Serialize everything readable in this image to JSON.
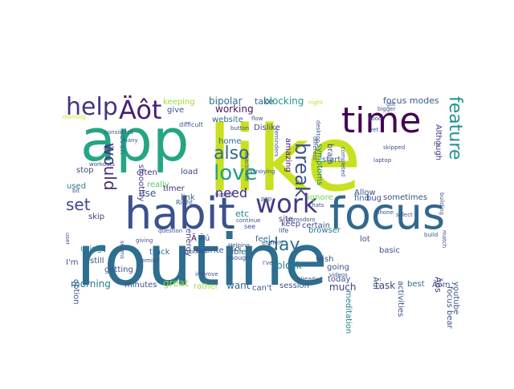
{
  "word_cloud": {
    "words": [
      {
        "text": "like",
        "color": "#c8e020"
      },
      {
        "text": "routine",
        "color": "#2e6e8e"
      },
      {
        "text": "app",
        "color": "#25a584"
      },
      {
        "text": "habit",
        "color": "#3b528b"
      },
      {
        "text": "focus",
        "color": "#31688e"
      },
      {
        "text": "time",
        "color": "#440154"
      },
      {
        "text": "work",
        "color": "#443983"
      },
      {
        "text": "help",
        "color": "#46327e"
      },
      {
        "text": "Äôt",
        "color": "#481f70"
      },
      {
        "text": "love",
        "color": "#1f9e89"
      },
      {
        "text": "feature",
        "color": "#21918c"
      },
      {
        "text": "break",
        "color": "#3b528b"
      },
      {
        "text": "also",
        "color": "#31688e"
      },
      {
        "text": "day",
        "color": "#2d708e"
      },
      {
        "text": "would",
        "color": "#472d7b"
      },
      {
        "text": "set",
        "color": "#3e4989"
      },
      {
        "text": "need",
        "color": "#482878"
      },
      {
        "text": "morning",
        "color": "#2a788e"
      },
      {
        "text": "Äôs",
        "color": "#453781"
      },
      {
        "text": "task",
        "color": "#414487"
      },
      {
        "text": "much",
        "color": "#433e85"
      },
      {
        "text": "bipolar",
        "color": "#2c728e"
      },
      {
        "text": "blocking",
        "color": "#1f968b"
      },
      {
        "text": "take",
        "color": "#31688e"
      },
      {
        "text": "focus modes",
        "color": "#38598c"
      },
      {
        "text": "working",
        "color": "#471164"
      },
      {
        "text": "keeping",
        "color": "#a2da37"
      },
      {
        "text": "give",
        "color": "#3b528b"
      },
      {
        "text": "website",
        "color": "#31688e"
      },
      {
        "text": "Dislike",
        "color": "#404688"
      },
      {
        "text": "amazing",
        "color": "#482475"
      },
      {
        "text": "start",
        "color": "#31688e"
      },
      {
        "text": "bug",
        "color": "#3b528b"
      },
      {
        "text": "Although",
        "color": "#433e85"
      },
      {
        "text": "even",
        "color": "#2a788e"
      },
      {
        "text": "stop",
        "color": "#3e4989"
      },
      {
        "text": "often",
        "color": "#46307e"
      },
      {
        "text": "load",
        "color": "#3f4788"
      },
      {
        "text": "used",
        "color": "#2a778e"
      },
      {
        "text": "really",
        "color": "#5ac864"
      },
      {
        "text": "use",
        "color": "#3b528b"
      },
      {
        "text": "timer",
        "color": "#46327e"
      },
      {
        "text": "link",
        "color": "#33638d"
      },
      {
        "text": "etc",
        "color": "#26818e"
      },
      {
        "text": "ignore",
        "color": "#7ad151"
      },
      {
        "text": "find",
        "color": "#31688e"
      },
      {
        "text": "sometimes",
        "color": "#3b528b"
      },
      {
        "text": "site",
        "color": "#443983"
      },
      {
        "text": "keep",
        "color": "#404688"
      },
      {
        "text": "skip",
        "color": "#433e85"
      },
      {
        "text": "energy",
        "color": "#3e4989"
      },
      {
        "text": "feel",
        "color": "#2f6c8e"
      },
      {
        "text": "lot",
        "color": "#3b528b"
      },
      {
        "text": "basic",
        "color": "#3b528b"
      },
      {
        "text": "still",
        "color": "#3b528b"
      },
      {
        "text": "using",
        "color": "#26828e"
      },
      {
        "text": "track",
        "color": "#31688e"
      },
      {
        "text": "favorite",
        "color": "#3b528b"
      },
      {
        "text": "able",
        "color": "#31688e"
      },
      {
        "text": "block",
        "color": "#26818e"
      },
      {
        "text": "wish",
        "color": "#3b528b"
      },
      {
        "text": "getting",
        "color": "#3b528b"
      },
      {
        "text": "option",
        "color": "#3b528b"
      },
      {
        "text": "great",
        "color": "#8fd744"
      },
      {
        "text": "want",
        "color": "#31688e"
      },
      {
        "text": "session",
        "color": "#3b528b"
      },
      {
        "text": "going",
        "color": "#3b528b"
      },
      {
        "text": "minutes",
        "color": "#3b528b"
      },
      {
        "text": "rather",
        "color": "#9fda3a"
      },
      {
        "text": "can't",
        "color": "#3b528b"
      },
      {
        "text": "meditation",
        "color": "#26818e"
      },
      {
        "text": "today",
        "color": "#3b528b"
      },
      {
        "text": "best",
        "color": "#31688e"
      },
      {
        "text": "youtube",
        "color": "#3b528b"
      },
      {
        "text": "focus bear",
        "color": "#3b528b"
      },
      {
        "text": "activities",
        "color": "#3b528b"
      },
      {
        "text": "ÄúI",
        "color": "#3b528b"
      },
      {
        "text": "Äôm",
        "color": "#3b528b"
      },
      {
        "text": "I'm",
        "color": "#3b528b"
      },
      {
        "text": "Ä",
        "color": "#440154"
      },
      {
        "text": "Äú",
        "color": "#3b528b"
      },
      {
        "text": "smoothly",
        "color": "#433e85"
      },
      {
        "text": "home",
        "color": "#31688e"
      },
      {
        "text": "symptoms",
        "color": "#26818e"
      },
      {
        "text": "brain",
        "color": "#3b528b"
      },
      {
        "text": "certain",
        "color": "#3b528b"
      },
      {
        "text": "browser",
        "color": "#2a788e"
      },
      {
        "text": "Allow",
        "color": "#3b528b"
      },
      {
        "text": "life",
        "color": "#3b528b"
      },
      {
        "text": "see",
        "color": "#3b528b"
      },
      {
        "text": "Right",
        "color": "#3b528b"
      },
      {
        "text": "though",
        "color": "#3b528b"
      },
      {
        "text": "difficult",
        "color": "#3b528b"
      },
      {
        "text": "night",
        "color": "#bddf26"
      },
      {
        "text": "continue",
        "color": "#3b528b"
      },
      {
        "text": "flow",
        "color": "#3b528b"
      },
      {
        "text": "based",
        "color": "#3b528b"
      },
      {
        "text": "pop",
        "color": "#3b528b"
      },
      {
        "text": "Thats",
        "color": "#3b528b"
      },
      {
        "text": "phone",
        "color": "#3b528b"
      },
      {
        "text": "videos",
        "color": "#3b528b"
      },
      {
        "text": "already",
        "color": "#3b528b"
      },
      {
        "text": "I've",
        "color": "#3b528b"
      },
      {
        "text": "LOL",
        "color": "#3b528b"
      },
      {
        "text": "Helping",
        "color": "#3b528b"
      },
      {
        "text": "giving",
        "color": "#3b528b"
      },
      {
        "text": "remind",
        "color": "#3b528b"
      },
      {
        "text": "improve",
        "color": "#3b528b"
      },
      {
        "text": "blocked",
        "color": "#3b528b"
      },
      {
        "text": "question",
        "color": "#3b528b"
      },
      {
        "text": "select",
        "color": "#3b528b"
      },
      {
        "text": "build",
        "color": "#3b528b"
      },
      {
        "text": "got",
        "color": "#3b528b"
      },
      {
        "text": "bigger",
        "color": "#3b528b"
      },
      {
        "text": "good",
        "color": "#3b528b"
      },
      {
        "text": "far",
        "color": "#3b528b"
      },
      {
        "text": "morning",
        "color": "#d2e21b"
      },
      {
        "text": "consistent",
        "color": "#3b528b"
      },
      {
        "text": "many",
        "color": "#3b528b"
      },
      {
        "text": "user",
        "color": "#3b528b"
      },
      {
        "text": "workouts",
        "color": "#3b528b"
      },
      {
        "text": "edit",
        "color": "#3b528b"
      },
      {
        "text": "bit",
        "color": "#3b528b"
      },
      {
        "text": "button",
        "color": "#3b528b"
      },
      {
        "text": "deactivate",
        "color": "#3b528b"
      },
      {
        "text": "desktop",
        "color": "#3b528b"
      },
      {
        "text": "laptop",
        "color": "#3b528b"
      },
      {
        "text": "skipped",
        "color": "#3b528b"
      },
      {
        "text": "match",
        "color": "#3b528b"
      },
      {
        "text": "pomodoro",
        "color": "#3b528b"
      },
      {
        "text": "annoying",
        "color": "#3b528b"
      },
      {
        "text": "completed",
        "color": "#3b528b"
      },
      {
        "text": "different",
        "color": "#3b528b"
      },
      {
        "text": "reminders",
        "color": "#3b528b"
      },
      {
        "text": "yet",
        "color": "#3b528b"
      },
      {
        "text": "seems",
        "color": "#3b528b"
      },
      {
        "text": "entirely",
        "color": "#3b528b"
      },
      {
        "text": "building",
        "color": "#3b528b"
      },
      {
        "text": "cognitive",
        "color": "#3b528b"
      }
    ]
  }
}
